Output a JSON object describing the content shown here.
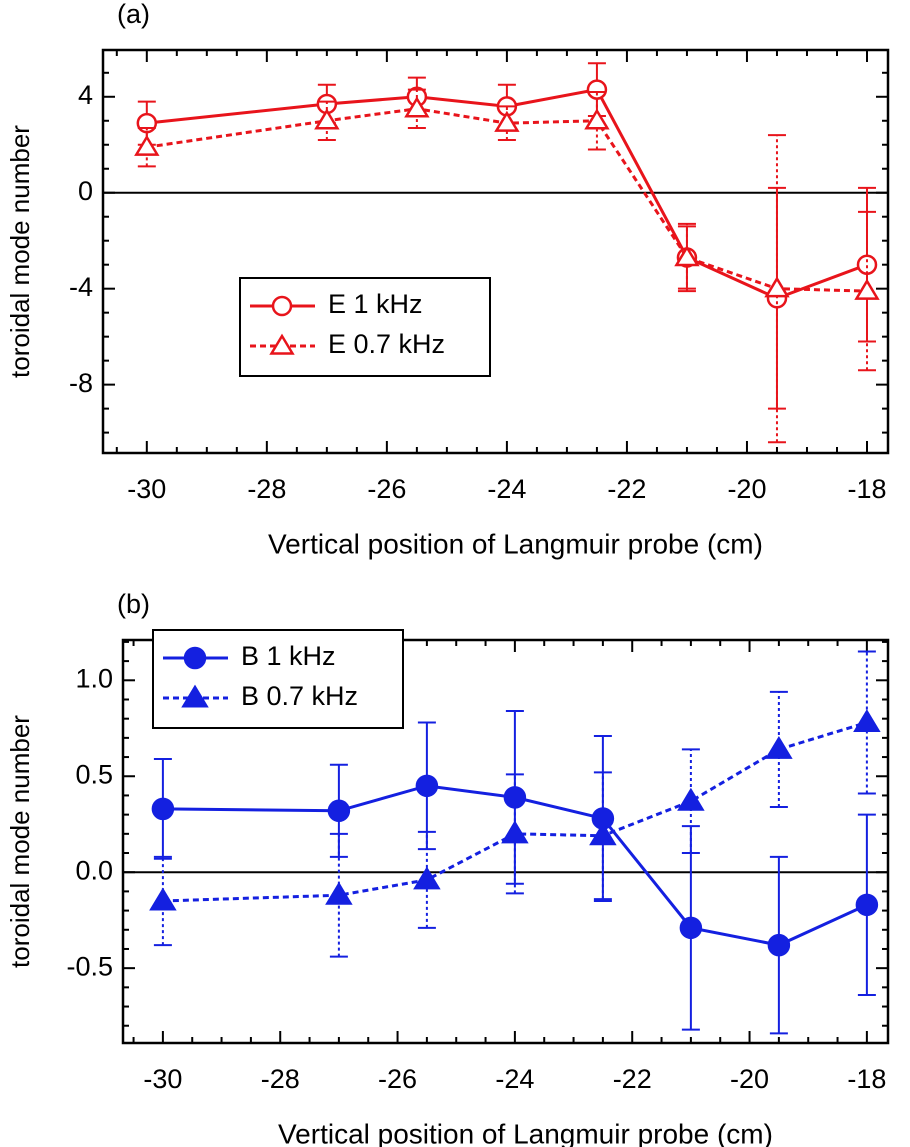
{
  "chart_data": [
    {
      "type": "line",
      "label": "(a)",
      "x_label": "Vertical position of Langmuir probe (cm)",
      "y_label": "toroidal mode number",
      "x": [
        -30,
        -27,
        -25.5,
        -24,
        -22.5,
        -21,
        -19.5,
        -18
      ],
      "series": [
        {
          "name": "E 1 kHz",
          "color": "#e8141b",
          "marker": "circle-open",
          "linestyle": "solid",
          "values": [
            2.9,
            3.7,
            4.0,
            3.6,
            4.3,
            -2.7,
            -4.4,
            -3.0
          ],
          "errors": [
            0.9,
            0.8,
            0.8,
            0.9,
            1.1,
            1.3,
            4.6,
            3.2
          ]
        },
        {
          "name": "E 0.7 kHz",
          "color": "#e8141b",
          "marker": "triangle-open",
          "linestyle": "dashed",
          "values": [
            1.9,
            3.0,
            3.5,
            2.9,
            3.0,
            -2.7,
            -4.0,
            -4.1
          ],
          "errors": [
            0.8,
            0.8,
            0.8,
            0.7,
            1.2,
            1.4,
            6.4,
            3.3
          ]
        }
      ],
      "xlim": [
        -30.73,
        -17.65
      ],
      "xticks": [
        -30,
        -28,
        -26,
        -24,
        -22,
        -20,
        -18
      ],
      "ylim": [
        -10.85,
        5.95
      ],
      "yticks": [
        -8,
        -4,
        0,
        4
      ],
      "zero_line": true,
      "legend": "center-left"
    },
    {
      "type": "line",
      "label": "(b)",
      "x_label": "Vertical position of Langmuir probe (cm)",
      "y_label": "toroidal mode number",
      "x": [
        -30,
        -27,
        -25.5,
        -24,
        -22.5,
        -21,
        -19.5,
        -18
      ],
      "series": [
        {
          "name": "B 1 kHz",
          "color": "#1420e0",
          "marker": "circle",
          "linestyle": "solid",
          "values": [
            0.33,
            0.32,
            0.45,
            0.39,
            0.28,
            -0.29,
            -0.38,
            -0.17
          ],
          "errors": [
            0.26,
            0.24,
            0.33,
            0.45,
            0.43,
            0.53,
            0.46,
            0.47
          ]
        },
        {
          "name": "B 0.7 kHz",
          "color": "#1420e0",
          "marker": "triangle",
          "linestyle": "dashed",
          "values": [
            -0.15,
            -0.12,
            -0.04,
            0.2,
            0.19,
            0.37,
            0.64,
            0.78
          ],
          "errors": [
            0.23,
            0.32,
            0.25,
            0.31,
            0.33,
            0.27,
            0.3,
            0.37
          ]
        }
      ],
      "xlim": [
        -30.68,
        -17.64
      ],
      "xticks": [
        -30,
        -28,
        -26,
        -24,
        -22,
        -20,
        -18
      ],
      "ylim": [
        -0.89,
        1.21
      ],
      "yticks": [
        -0.5,
        {
          "value": 0,
          "label": "0.0"
        },
        0.5,
        {
          "value": 1,
          "label": "1.0"
        }
      ],
      "zero_line": true,
      "legend": "upper-left"
    }
  ]
}
